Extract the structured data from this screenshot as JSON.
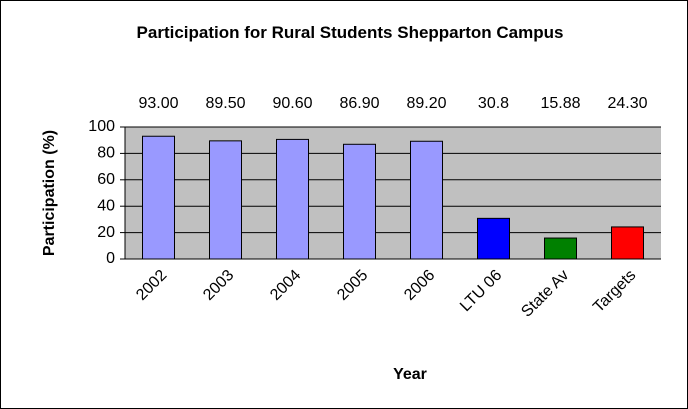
{
  "chart_data": {
    "type": "bar",
    "title": "Participation for Rural Students Shepparton Campus",
    "x_label": "Year",
    "y_label": "Participation (%)",
    "categories": [
      "2002",
      "2003",
      "2004",
      "2005",
      "2006",
      "LTU 06",
      "State Av",
      "Targets"
    ],
    "values": [
      93,
      89.5,
      90.6,
      86.9,
      89.2,
      30.8,
      15.88,
      24.3
    ],
    "value_labels": [
      "93.00",
      "89.50",
      "90.60",
      "86.90",
      "89.20",
      "30.8",
      "15.88",
      "24.30"
    ],
    "colors": [
      "#9999ff",
      "#9999ff",
      "#9999ff",
      "#9999ff",
      "#9999ff",
      "#0000ff",
      "#008000",
      "#ff0000"
    ],
    "ylim": [
      0,
      100
    ],
    "yticks": [
      0,
      20,
      40,
      60,
      80,
      100
    ],
    "grid": true
  }
}
